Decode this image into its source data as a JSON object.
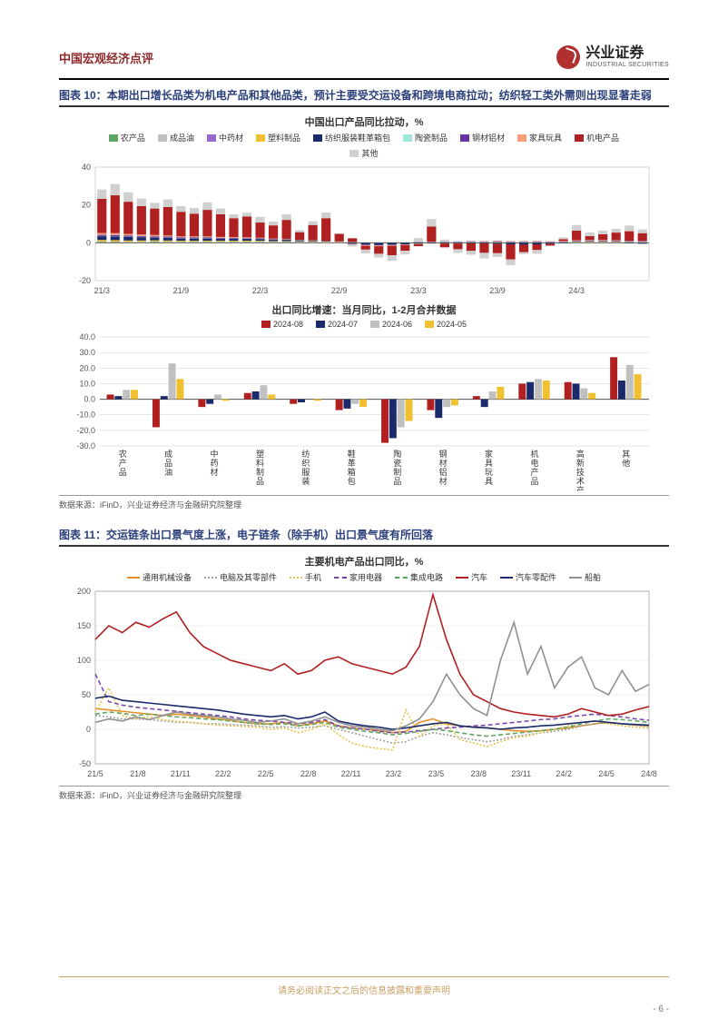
{
  "header": {
    "title": "中国宏观经济点评",
    "logo_cn": "兴业证券",
    "logo_en": "INDUSTRIAL SECURITIES"
  },
  "figure10": {
    "label": "图表 10：",
    "title": "本期出口增长品类为机电产品和其他品类，预计主要受交运设备和跨境电商拉动；纺织轻工类外需则出现显著走弱",
    "chart1": {
      "type": "stacked-bar",
      "title": "中国出口产品同比拉动，%",
      "ylim": [
        -20,
        40
      ],
      "ytick_step": 20,
      "yticks": [
        -20,
        0,
        20,
        40
      ],
      "x_labels": [
        "21/3",
        "",
        "",
        "",
        "",
        "",
        "21/9",
        "",
        "",
        "",
        "",
        "",
        "22/3",
        "",
        "",
        "",
        "",
        "",
        "22/9",
        "",
        "",
        "",
        "",
        "",
        "23/3",
        "",
        "",
        "",
        "",
        "",
        "23/9",
        "",
        "",
        "",
        "",
        "",
        "24/3",
        "",
        "",
        "",
        "",
        ""
      ],
      "x_major": [
        "21/3",
        "21/9",
        "22/3",
        "22/9",
        "23/3",
        "23/9",
        "24/3"
      ],
      "legend": [
        {
          "label": "农产品",
          "color": "#5fa85f"
        },
        {
          "label": "成品油",
          "color": "#c0c0c0"
        },
        {
          "label": "中药材",
          "color": "#9966cc"
        },
        {
          "label": "塑料制品",
          "color": "#f0c030"
        },
        {
          "label": "纺织服装鞋革箱包",
          "color": "#1a2a6a"
        },
        {
          "label": "陶瓷制品",
          "color": "#a0e8d8"
        },
        {
          "label": "钢材铝材",
          "color": "#6633aa"
        },
        {
          "label": "家具玩具",
          "color": "#f5a07a"
        },
        {
          "label": "机电产品",
          "color": "#b02020"
        },
        {
          "label": "其他",
          "color": "#d0d0d0"
        }
      ],
      "series": {
        "nongchanpin": [
          0.5,
          0.4,
          0.3,
          0.3,
          0.4,
          0.3,
          0.3,
          0.3,
          0.3,
          0.3,
          0.3,
          0.3,
          0.3,
          0.2,
          0.3,
          0.2,
          0.2,
          0.2,
          0.2,
          0.1,
          0.1,
          0.1,
          0.2,
          0.2,
          0.2,
          0.2,
          0.2,
          0.2,
          0.3,
          0.2,
          0.3,
          0.2,
          0.2,
          0.2,
          0.2,
          0.2,
          0.2,
          0.2,
          0.2,
          0.2,
          0.2,
          0.2
        ],
        "chengpinyou": [
          0.2,
          0.2,
          0.2,
          0.2,
          0.3,
          0.3,
          0.3,
          0.3,
          0.3,
          0.3,
          0.3,
          0.3,
          0.4,
          0.4,
          0.3,
          0.3,
          0.3,
          0.3,
          0.2,
          0.2,
          0.1,
          0.1,
          0.1,
          0.1,
          0.1,
          0.1,
          0.1,
          0.1,
          0.1,
          0.1,
          0.1,
          0.1,
          0.1,
          0.1,
          0.1,
          0.1,
          0.1,
          0.1,
          0.1,
          0.1,
          0.1,
          0.1
        ],
        "zhongyaocai": [
          0,
          0,
          0,
          0,
          0,
          0,
          0,
          0,
          0,
          0,
          0,
          0,
          0,
          0,
          0,
          0,
          0,
          0,
          0,
          0,
          0,
          0,
          0,
          0,
          0,
          0,
          0,
          0,
          0,
          0,
          0,
          0,
          0,
          0,
          0,
          0,
          0,
          0,
          0,
          0,
          0,
          0
        ],
        "suliao": [
          0.8,
          0.8,
          0.7,
          0.7,
          0.6,
          0.6,
          0.5,
          0.5,
          0.5,
          0.5,
          0.5,
          0.5,
          0.4,
          0.3,
          0.3,
          0.3,
          0.3,
          0.2,
          0.2,
          0.1,
          0.1,
          0.1,
          0.1,
          0.1,
          0.2,
          0.2,
          0.2,
          0.2,
          0.2,
          0.2,
          0.3,
          0.2,
          0.2,
          0.2,
          0.2,
          0.2,
          0.3,
          0.3,
          0.3,
          0.3,
          0.3,
          0.3
        ],
        "fangzhi": [
          2,
          2,
          2,
          1.8,
          1.5,
          1.5,
          1.2,
          1.2,
          1.2,
          1,
          1,
          1,
          1,
          0.8,
          0.8,
          0.6,
          0.5,
          0.3,
          0.2,
          -0.5,
          -1,
          -1.2,
          -1,
          -0.8,
          -0.5,
          -0.3,
          -0.3,
          -0.3,
          -0.3,
          -0.3,
          -0.5,
          -0.8,
          -1,
          -0.8,
          -0.5,
          -0.3,
          0.2,
          0.3,
          0.3,
          0.2,
          -0.3,
          -0.5
        ],
        "taoci": [
          0.1,
          0.1,
          0.1,
          0.1,
          0.1,
          0.1,
          0.1,
          0.1,
          0.1,
          0.1,
          0.1,
          0.1,
          0,
          0,
          0,
          0,
          0,
          0,
          0,
          0,
          0,
          0,
          0,
          0,
          0,
          0,
          0,
          0,
          0,
          0,
          0,
          0,
          0,
          0,
          0,
          0,
          0,
          0,
          0,
          0,
          0,
          0
        ],
        "gangcai": [
          0.6,
          0.6,
          0.6,
          0.5,
          0.5,
          0.5,
          0.5,
          0.5,
          0.5,
          0.4,
          0.4,
          0.3,
          0.3,
          0.3,
          0.2,
          0.1,
          0.1,
          0,
          -0.1,
          -0.2,
          -0.2,
          -0.2,
          -0.2,
          -0.1,
          0,
          0.1,
          0.2,
          0.2,
          0.3,
          0.3,
          0.3,
          0.3,
          0.3,
          0.3,
          0.2,
          0.2,
          0.3,
          0.3,
          0.3,
          0.3,
          0.3,
          0.3
        ],
        "jiaju": [
          1,
          1,
          0.8,
          0.8,
          0.7,
          0.6,
          0.5,
          0.5,
          0.5,
          0.5,
          0.4,
          0.4,
          0.3,
          0.2,
          0.2,
          0.1,
          0,
          -0.1,
          -0.2,
          -0.3,
          -0.4,
          -0.4,
          -0.4,
          -0.3,
          -0.3,
          -0.2,
          -0.1,
          -0.1,
          0,
          0,
          0.1,
          0.1,
          0.1,
          0.2,
          0.2,
          0.2,
          0.3,
          0.3,
          0.3,
          0.3,
          0.2,
          0.2
        ],
        "jidian": [
          18,
          20,
          17,
          15,
          14,
          15,
          13,
          12,
          14,
          12,
          10,
          11,
          8,
          7,
          10,
          4,
          8,
          12,
          4,
          2,
          -2,
          -4,
          -5,
          -3,
          -1,
          8,
          -2,
          -3,
          -4,
          -5,
          -5,
          -8,
          -4,
          -3,
          -1,
          1,
          5,
          2,
          3,
          4,
          5,
          4
        ],
        "qita": [
          5,
          6,
          5,
          4,
          3,
          4,
          3,
          3,
          4,
          3,
          2,
          2,
          3,
          2,
          3,
          1,
          2,
          3,
          0,
          -1,
          -2,
          -2,
          -3,
          -2,
          2,
          4,
          1,
          -2,
          -2,
          -3,
          -2,
          -3,
          -1,
          -2,
          0,
          1,
          3,
          2,
          2,
          2,
          3,
          2
        ]
      },
      "background_color": "#ffffff",
      "grid_color": "#ffffff",
      "axis_color": "#555555"
    },
    "chart2": {
      "type": "grouped-bar",
      "title": "出口同比增速：当月同比，1-2月合并数据",
      "ylim": [
        -30,
        40
      ],
      "ytick_step": 10,
      "yticks": [
        -30,
        -20,
        -10,
        0,
        10,
        20,
        30,
        40
      ],
      "legend": [
        {
          "label": "2024-08",
          "color": "#b02020"
        },
        {
          "label": "2024-07",
          "color": "#1a2a6a"
        },
        {
          "label": "2024-06",
          "color": "#c0c0c0"
        },
        {
          "label": "2024-05",
          "color": "#f0c030"
        }
      ],
      "categories": [
        "农产品",
        "成品油",
        "中药材",
        "塑料制品",
        "纺织服装",
        "鞋革箱包",
        "陶瓷制品",
        "钢材铝材",
        "家具玩具",
        "机电产品",
        "高新技术产品",
        "其他"
      ],
      "values": {
        "2024-08": [
          3,
          -18,
          -5,
          4,
          -3,
          -7,
          -28,
          -7,
          2,
          10,
          11,
          27
        ],
        "2024-07": [
          2,
          2,
          -3,
          5,
          -2,
          -6,
          -25,
          -12,
          -5,
          11,
          10,
          12
        ],
        "2024-06": [
          6,
          23,
          3,
          9,
          0,
          -3,
          -18,
          -5,
          5,
          13,
          7,
          22
        ],
        "2024-05": [
          6,
          13,
          -1,
          3,
          -1,
          -5,
          -14,
          -4,
          8,
          12,
          4,
          16
        ]
      },
      "background_color": "#ffffff",
      "grid_color": "#cccccc"
    },
    "source": "数据来源：iFinD，兴业证券经济与金融研究院整理"
  },
  "figure11": {
    "label": "图表 11：",
    "title": "交运链条出口景气度上涨，电子链条（除手机）出口景气度有所回落",
    "chart": {
      "type": "line",
      "title": "主要机电产品出口同比，%",
      "ylim": [
        -50,
        200
      ],
      "ytick_step": 50,
      "yticks": [
        -50,
        0,
        50,
        100,
        150,
        200
      ],
      "x_major": [
        "21/5",
        "21/8",
        "21/11",
        "22/2",
        "22/5",
        "22/8",
        "22/11",
        "23/2",
        "23/5",
        "23/8",
        "23/11",
        "24/2",
        "24/5",
        "24/8"
      ],
      "legend": [
        {
          "label": "通用机械设备",
          "color": "#e8902a",
          "style": "solid"
        },
        {
          "label": "电脑及其零部件",
          "color": "#a0a0a0",
          "style": "dotted"
        },
        {
          "label": "手机",
          "color": "#e8c24a",
          "style": "dotted"
        },
        {
          "label": "家用电器",
          "color": "#7a4aaa",
          "style": "dashed"
        },
        {
          "label": "集成电路",
          "color": "#5fa85f",
          "style": "dashed"
        },
        {
          "label": "汽车",
          "color": "#b02020",
          "style": "solid"
        },
        {
          "label": "汽车零配件",
          "color": "#1a2a6a",
          "style": "solid"
        },
        {
          "label": "船舶",
          "color": "#909090",
          "style": "solid"
        }
      ],
      "series": {
        "tongyong": [
          30,
          28,
          26,
          24,
          22,
          20,
          22,
          20,
          18,
          15,
          13,
          10,
          8,
          8,
          10,
          5,
          8,
          12,
          5,
          2,
          0,
          -2,
          -5,
          -3,
          10,
          15,
          8,
          5,
          3,
          2,
          0,
          -2,
          -3,
          -2,
          0,
          2,
          5,
          8,
          10,
          8,
          6,
          5
        ],
        "diannao": [
          20,
          18,
          15,
          15,
          14,
          12,
          10,
          10,
          8,
          8,
          7,
          6,
          5,
          3,
          4,
          2,
          3,
          5,
          0,
          -5,
          -10,
          -15,
          -20,
          -18,
          -10,
          -5,
          -8,
          -12,
          -15,
          -18,
          -15,
          -10,
          -8,
          -5,
          -3,
          0,
          5,
          8,
          10,
          8,
          6,
          4
        ],
        "shouji": [
          25,
          60,
          20,
          15,
          18,
          14,
          12,
          10,
          8,
          6,
          5,
          4,
          3,
          0,
          2,
          -5,
          0,
          8,
          -8,
          -20,
          -25,
          -28,
          -30,
          28,
          -10,
          5,
          8,
          -15,
          -20,
          -25,
          -18,
          -12,
          -10,
          -5,
          0,
          5,
          10,
          12,
          8,
          5,
          3,
          2
        ],
        "jiadian": [
          80,
          40,
          35,
          32,
          30,
          28,
          26,
          24,
          22,
          20,
          18,
          15,
          13,
          12,
          10,
          8,
          10,
          14,
          5,
          2,
          0,
          -3,
          -5,
          -4,
          -2,
          0,
          2,
          3,
          5,
          6,
          8,
          10,
          12,
          14,
          15,
          18,
          20,
          22,
          20,
          18,
          15,
          13
        ],
        "jicheng": [
          22,
          25,
          23,
          20,
          22,
          20,
          18,
          17,
          15,
          14,
          12,
          10,
          8,
          7,
          8,
          5,
          7,
          10,
          3,
          0,
          -3,
          -5,
          -8,
          -6,
          -3,
          0,
          -2,
          -5,
          -8,
          -10,
          -8,
          -6,
          -4,
          -2,
          0,
          3,
          8,
          12,
          15,
          14,
          12,
          10
        ],
        "qiche": [
          130,
          150,
          140,
          155,
          148,
          160,
          170,
          140,
          120,
          110,
          100,
          95,
          90,
          85,
          95,
          80,
          85,
          100,
          105,
          95,
          90,
          85,
          80,
          90,
          120,
          195,
          130,
          80,
          50,
          40,
          30,
          25,
          22,
          20,
          18,
          22,
          30,
          25,
          20,
          22,
          28,
          33
        ],
        "qichepj": [
          45,
          48,
          42,
          40,
          38,
          36,
          34,
          32,
          30,
          28,
          25,
          22,
          20,
          18,
          20,
          15,
          18,
          25,
          12,
          8,
          5,
          3,
          0,
          2,
          5,
          8,
          10,
          5,
          3,
          2,
          0,
          2,
          3,
          5,
          6,
          8,
          10,
          12,
          10,
          8,
          7,
          6
        ],
        "chuanbo": [
          10,
          15,
          12,
          18,
          14,
          20,
          25,
          22,
          20,
          18,
          15,
          13,
          10,
          12,
          15,
          8,
          12,
          18,
          10,
          5,
          3,
          0,
          -2,
          5,
          15,
          40,
          80,
          50,
          30,
          20,
          100,
          155,
          80,
          120,
          60,
          90,
          105,
          60,
          50,
          85,
          55,
          65
        ]
      },
      "background_color": "#ffffff",
      "grid_color": "#e0e0e0"
    },
    "source": "数据来源：iFinD，兴业证券经济与金融研究院整理"
  },
  "footer": {
    "disclaimer": "请务必阅读正文之后的信息披露和重要声明",
    "page": "- 6 -"
  }
}
